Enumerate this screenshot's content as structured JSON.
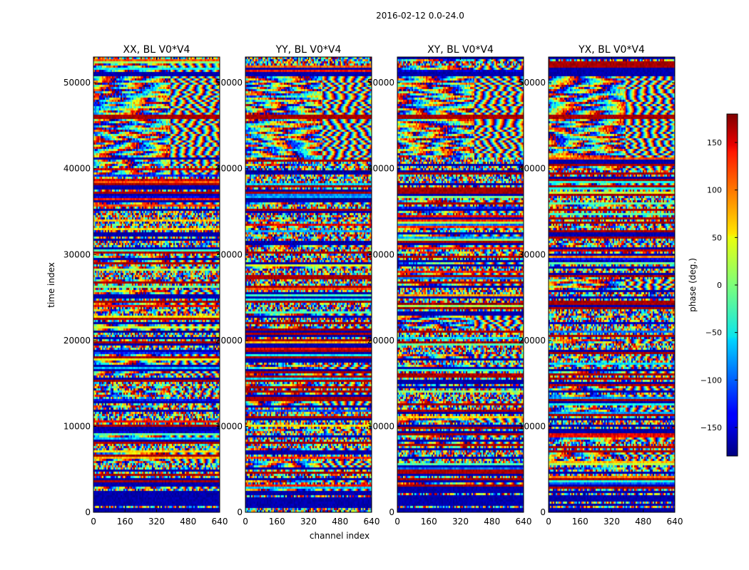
{
  "chart_data": {
    "type": "heatmap",
    "title": "2016-02-12 0.0-24.0",
    "xlabel": "channel index",
    "ylabel": "time index",
    "xlim": [
      0,
      640
    ],
    "ylim": [
      0,
      53000
    ],
    "x_ticks": [
      0,
      160,
      320,
      480,
      640
    ],
    "y_ticks": [
      0,
      10000,
      20000,
      30000,
      40000,
      50000
    ],
    "panels": [
      {
        "title": "XX, BL V0*V4"
      },
      {
        "title": "YY, BL V0*V4"
      },
      {
        "title": "XY, BL V0*V4"
      },
      {
        "title": "YX, BL V0*V4"
      }
    ],
    "colorbar": {
      "label": "phase (deg.)",
      "range": [
        -180,
        180
      ],
      "ticks": [
        -150,
        -100,
        -50,
        0,
        50,
        100,
        150
      ]
    }
  }
}
